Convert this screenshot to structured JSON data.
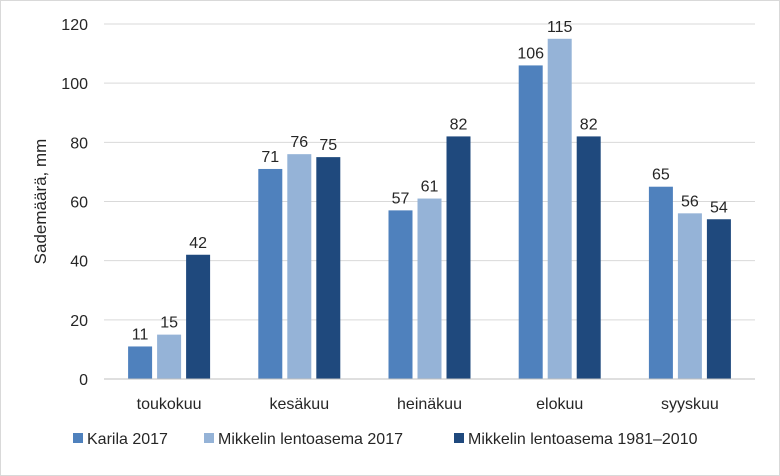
{
  "chart_data": {
    "type": "bar",
    "ylabel": "Sademäärä, mm",
    "ylim": [
      0,
      120
    ],
    "yticks": [
      0,
      20,
      40,
      60,
      80,
      100,
      120
    ],
    "categories": [
      "toukokuu",
      "kesäkuu",
      "heinäkuu",
      "elokuu",
      "syyskuu"
    ],
    "series": [
      {
        "name": "Karila 2017",
        "color": "#4f81bd",
        "values": [
          11,
          71,
          57,
          106,
          65
        ]
      },
      {
        "name": "Mikkelin lentoasema 2017",
        "color": "#95b3d7",
        "values": [
          15,
          76,
          61,
          115,
          56
        ]
      },
      {
        "name": "Mikkelin lentoasema 1981–2010",
        "color": "#1f497d",
        "values": [
          42,
          75,
          82,
          82,
          54
        ]
      }
    ],
    "grid": true,
    "legend": "bottom"
  }
}
